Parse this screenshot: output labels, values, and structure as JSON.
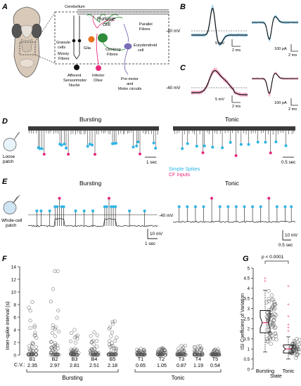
{
  "panels": {
    "A": {
      "label": "A",
      "structures": {
        "cerebellum": "Cerebellum",
        "parallel_fibres": [
          "Parallel",
          "Fibres"
        ],
        "purkinje_cell": [
          "Purkinje",
          "cell"
        ],
        "granule_cells": [
          "Granule",
          "cells"
        ],
        "glia": "Glia",
        "climbing_fibres": [
          "Climbing",
          "Fibres"
        ],
        "eurydendroid_cell": [
          "Eurydendroid",
          "cell"
        ],
        "mossy_fibres": [
          "Mossy",
          "Fibres"
        ],
        "afferent": [
          "Afferent",
          "Sensorimotor",
          "Nuclei"
        ],
        "inferior_olive": [
          "Inferior",
          "Olive"
        ],
        "premotor": [
          "Pre-motor",
          "and",
          "Motor circuits"
        ]
      }
    },
    "B": {
      "label": "B",
      "threshold": "-40 mV",
      "scale_v": "5 mV",
      "scale_t": "2 ms",
      "scale_i": "100 pA",
      "scale_t2": "2 ms"
    },
    "C": {
      "label": "C",
      "threshold": "-40 mV",
      "scale_v": "5 mV",
      "scale_t": "2 ms",
      "scale_i": "100 pA",
      "scale_t2": "2 ms"
    },
    "D": {
      "label": "D",
      "side_label": [
        "Loose",
        "patch"
      ],
      "bursting_title": "Bursting",
      "tonic_title": "Tonic",
      "scale_left": "1 sec",
      "scale_right": "0.5 sec"
    },
    "legend": {
      "simple_spikes": "Simple Spikes",
      "cf_inputs": "CF Inputs"
    },
    "E": {
      "label": "E",
      "side_label": [
        "Whole-cell",
        "patch"
      ],
      "bursting_title": "Bursting",
      "tonic_title": "Tonic",
      "threshold": "-40 mV",
      "scale_v_left": "10 mV",
      "scale_t_left": "1 sec",
      "scale_v_right": "10 mV",
      "scale_t_right": "0.5 sec"
    }
  },
  "colors": {
    "simple_spike": "#2db4e6",
    "cf_input": "#e6287a",
    "trace": "#3a3a3a",
    "trace_light_blue": "#9fd6ef",
    "trace_light_pink": "#f4a7c6",
    "purkinje": "#2e8b3a",
    "glia": "#e8731f",
    "granule": "#111111",
    "eurydendroid": "#7a6db5",
    "inferior_olive": "#e6287a"
  },
  "chart_data": [
    {
      "panel_label": "F",
      "type": "scatter",
      "ylabel": "Inter-spike interval (s)",
      "ylim": [
        0,
        14
      ],
      "yticks": [
        0,
        2,
        4,
        6,
        8,
        10,
        12,
        14
      ],
      "cv_label": "C.V.:",
      "groups": [
        {
          "name": "Bursting",
          "cells": [
            {
              "name": "B1",
              "cv": "2.35",
              "max": 8.4
            },
            {
              "name": "B2",
              "cv": "2.97",
              "max": 13.3
            },
            {
              "name": "B3",
              "cv": "2.81",
              "max": 4.0
            },
            {
              "name": "B4",
              "cv": "2.51",
              "max": 3.6
            },
            {
              "name": "B5",
              "cv": "2.18",
              "max": 5.3
            }
          ]
        },
        {
          "name": "Tonic",
          "cells": [
            {
              "name": "T1",
              "cv": "0.65",
              "max": 1.0
            },
            {
              "name": "T2",
              "cv": "1.05",
              "max": 1.1
            },
            {
              "name": "T3",
              "cv": "0.87",
              "max": 1.5
            },
            {
              "name": "T4",
              "cv": "1.19",
              "max": 1.4
            },
            {
              "name": "T5",
              "cv": "0.54",
              "max": 0.9
            }
          ]
        }
      ]
    },
    {
      "panel_label": "G",
      "type": "box",
      "ylabel": "ISI Coefficient of Variation",
      "xlabel": "State",
      "ylim": [
        0,
        5
      ],
      "yticks": [
        0,
        0.5,
        1,
        1.5,
        2,
        2.5,
        3,
        3.5,
        4,
        4.5,
        5
      ],
      "significance": "p < 0.0001",
      "categories": [
        "Bursting",
        "Tonic"
      ],
      "boxes": [
        {
          "name": "Bursting",
          "min": 0.85,
          "q1": 1.8,
          "median": 2.3,
          "q3": 2.9,
          "max": 3.9,
          "outliers": [
            4.35,
            4.5
          ]
        },
        {
          "name": "Tonic",
          "min": 0.5,
          "q1": 0.8,
          "median": 1.0,
          "q3": 1.2,
          "max": 1.6,
          "outliers": [
            1.9,
            2.05,
            2.2,
            2.6,
            3.2,
            4.1
          ]
        }
      ]
    }
  ]
}
